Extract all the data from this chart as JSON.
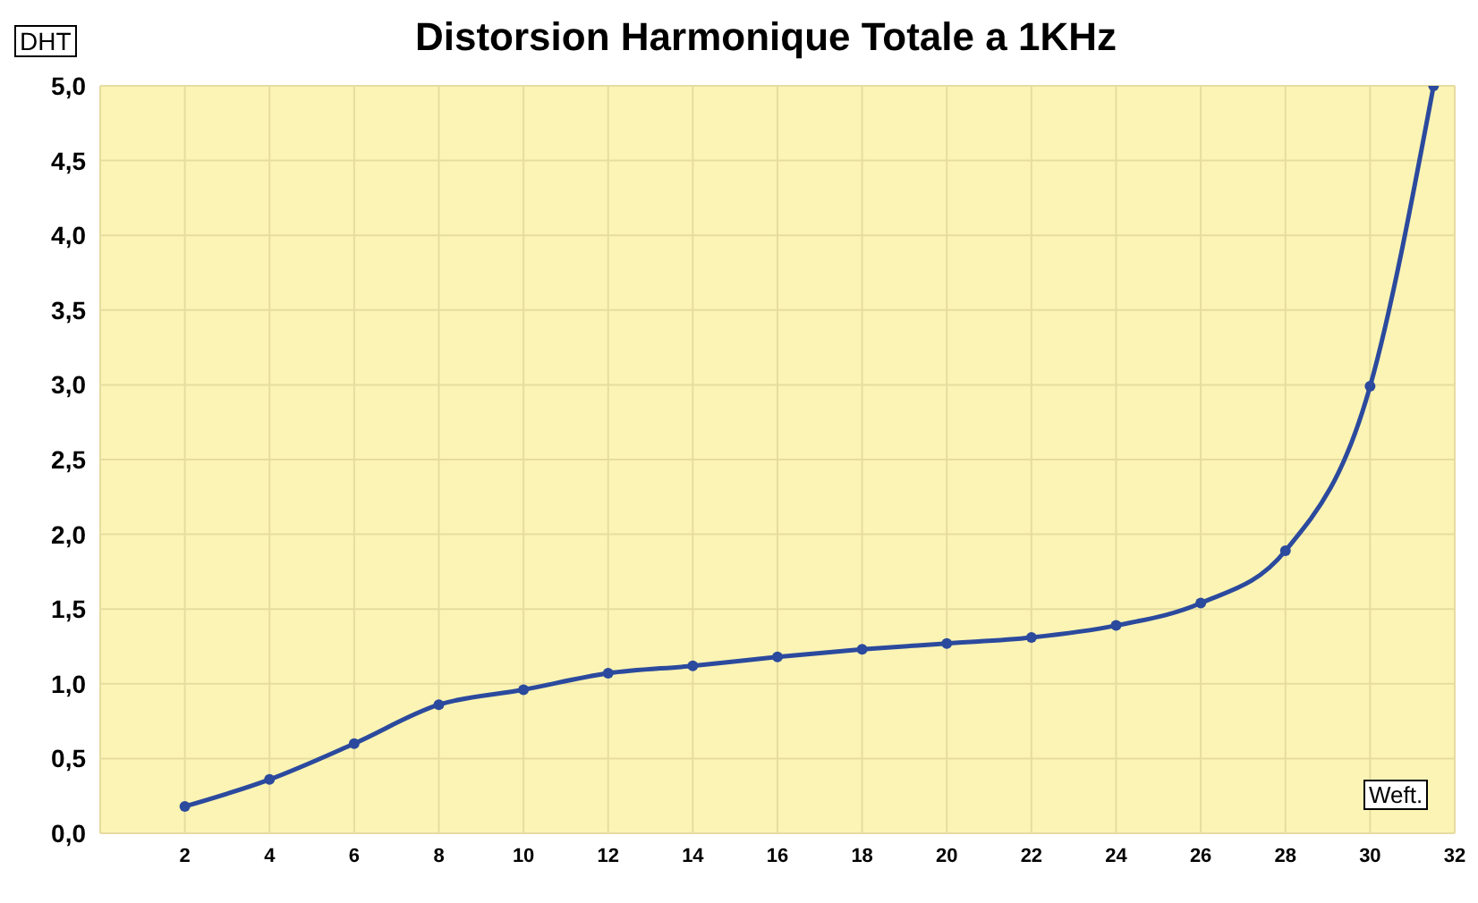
{
  "chart_data": {
    "type": "line",
    "title": "Distorsion Harmonique Totale a 1KHz",
    "xlabel": "Weft.",
    "ylabel": "DHT",
    "x": [
      2,
      4,
      6,
      8,
      10,
      12,
      14,
      16,
      18,
      20,
      22,
      24,
      26,
      28,
      30,
      31.5
    ],
    "series": [
      {
        "color": "#2b4a9e",
        "values": [
          0.18,
          0.36,
          0.6,
          0.86,
          0.96,
          1.07,
          1.12,
          1.18,
          1.23,
          1.27,
          1.31,
          1.39,
          1.54,
          1.89,
          2.99,
          5.0
        ]
      }
    ],
    "xlim": [
      0,
      32
    ],
    "xticks": [
      2,
      4,
      6,
      8,
      10,
      12,
      14,
      16,
      18,
      20,
      22,
      24,
      26,
      28,
      30,
      32
    ],
    "ylim": [
      0,
      5
    ],
    "yticks": [
      {
        "value": 0,
        "label": "0,0"
      },
      {
        "value": 0.5,
        "label": "0,5"
      },
      {
        "value": 1,
        "label": "1,0"
      },
      {
        "value": 1.5,
        "label": "1,5"
      },
      {
        "value": 2,
        "label": "2,0"
      },
      {
        "value": 2.5,
        "label": "2,5"
      },
      {
        "value": 3,
        "label": "3,0"
      },
      {
        "value": 3.5,
        "label": "3,5"
      },
      {
        "value": 4,
        "label": "4,0"
      },
      {
        "value": 4.5,
        "label": "4,5"
      },
      {
        "value": 5,
        "label": "5,0"
      }
    ],
    "grid": true,
    "marker": "circle",
    "line_style": "solid",
    "legend": false
  }
}
